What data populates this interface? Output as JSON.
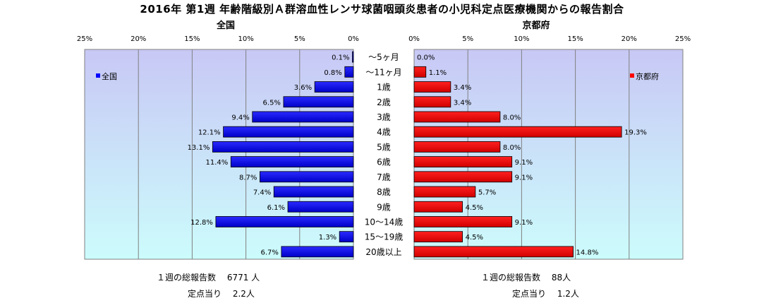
{
  "title": "2016年 第1週 年齢階級別Ａ群溶血性レンサ球菌咽頭炎患者の小児科定点医療機関からの報告割合",
  "chart_data": {
    "type": "bar",
    "orientation": "horizontal",
    "categories": [
      "～5ヶ月",
      "～11ヶ月",
      "1歳",
      "2歳",
      "3歳",
      "4歳",
      "5歳",
      "6歳",
      "7歳",
      "8歳",
      "9歳",
      "10～14歳",
      "15～19歳",
      "20歳以上"
    ],
    "xlim": [
      0,
      25
    ],
    "x_ticks": [
      "25%",
      "20%",
      "15%",
      "10%",
      "5%",
      "0%"
    ],
    "x_ticks_right": [
      "0%",
      "5%",
      "10%",
      "15%",
      "20%",
      "25%"
    ],
    "grid": true,
    "panels": [
      {
        "panel_title": "全国",
        "name": "全国",
        "color": "#0000ff",
        "direction": "left",
        "legend_position": "top-left",
        "values": [
          0.1,
          0.8,
          3.6,
          6.5,
          9.4,
          12.1,
          13.1,
          11.4,
          8.7,
          7.4,
          6.1,
          12.8,
          1.3,
          6.7
        ],
        "labels": [
          "0.1%",
          "0.8%",
          "3.6%",
          "6.5%",
          "9.4%",
          "12.1%",
          "13.1%",
          "11.4%",
          "8.7%",
          "7.4%",
          "6.1%",
          "12.8%",
          "1.3%",
          "6.7%"
        ]
      },
      {
        "panel_title": "京都府",
        "name": "京都府",
        "color": "#ff0000",
        "direction": "right",
        "legend_position": "top-right",
        "values": [
          0.0,
          1.1,
          3.4,
          3.4,
          8.0,
          19.3,
          8.0,
          9.1,
          9.1,
          5.7,
          4.5,
          9.1,
          4.5,
          14.8
        ],
        "labels": [
          "0.0%",
          "1.1%",
          "3.4%",
          "3.4%",
          "8.0%",
          "19.3%",
          "8.0%",
          "9.1%",
          "9.1%",
          "5.7%",
          "4.5%",
          "9.1%",
          "4.5%",
          "14.8%"
        ]
      }
    ]
  },
  "footer": {
    "national_total": "１週の総報告数　 6771 人",
    "national_per": "定点当り　 2.2人",
    "kyoto_total": "１週の総報告数　 88人",
    "kyoto_per": "定点当り　 1.2人"
  },
  "colors": {
    "panel_gradient_top": "#c8c8f5",
    "panel_gradient_bottom": "#ccfcfc"
  }
}
